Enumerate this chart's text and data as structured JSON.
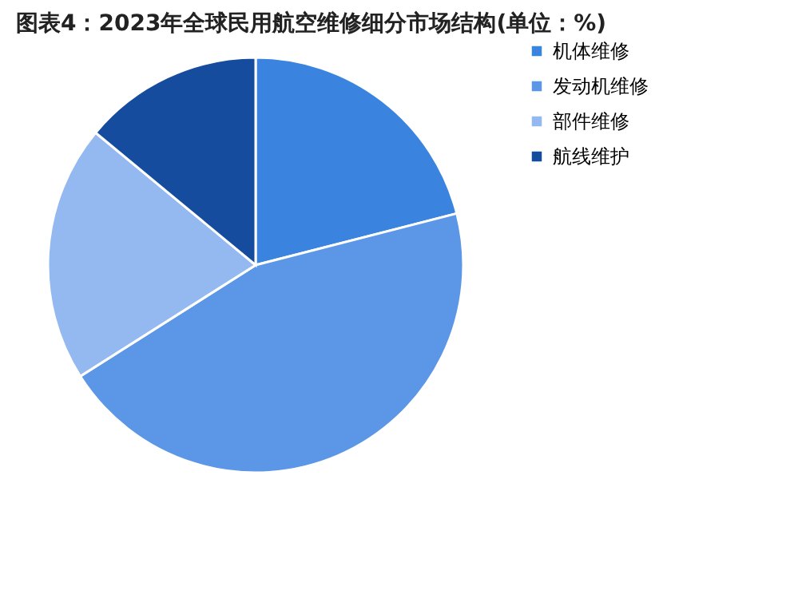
{
  "chart_data": {
    "type": "pie",
    "title": "图表4：2023年全球民用航空维修细分市场结构(单位：%)",
    "categories": [
      "机体维修",
      "发动机维修",
      "部件维修",
      "航线维护"
    ],
    "values": [
      21,
      45,
      20,
      14
    ],
    "colors": [
      "#3a84e0",
      "#5b97e6",
      "#93b9f0",
      "#154c9e"
    ],
    "legend": "right"
  }
}
